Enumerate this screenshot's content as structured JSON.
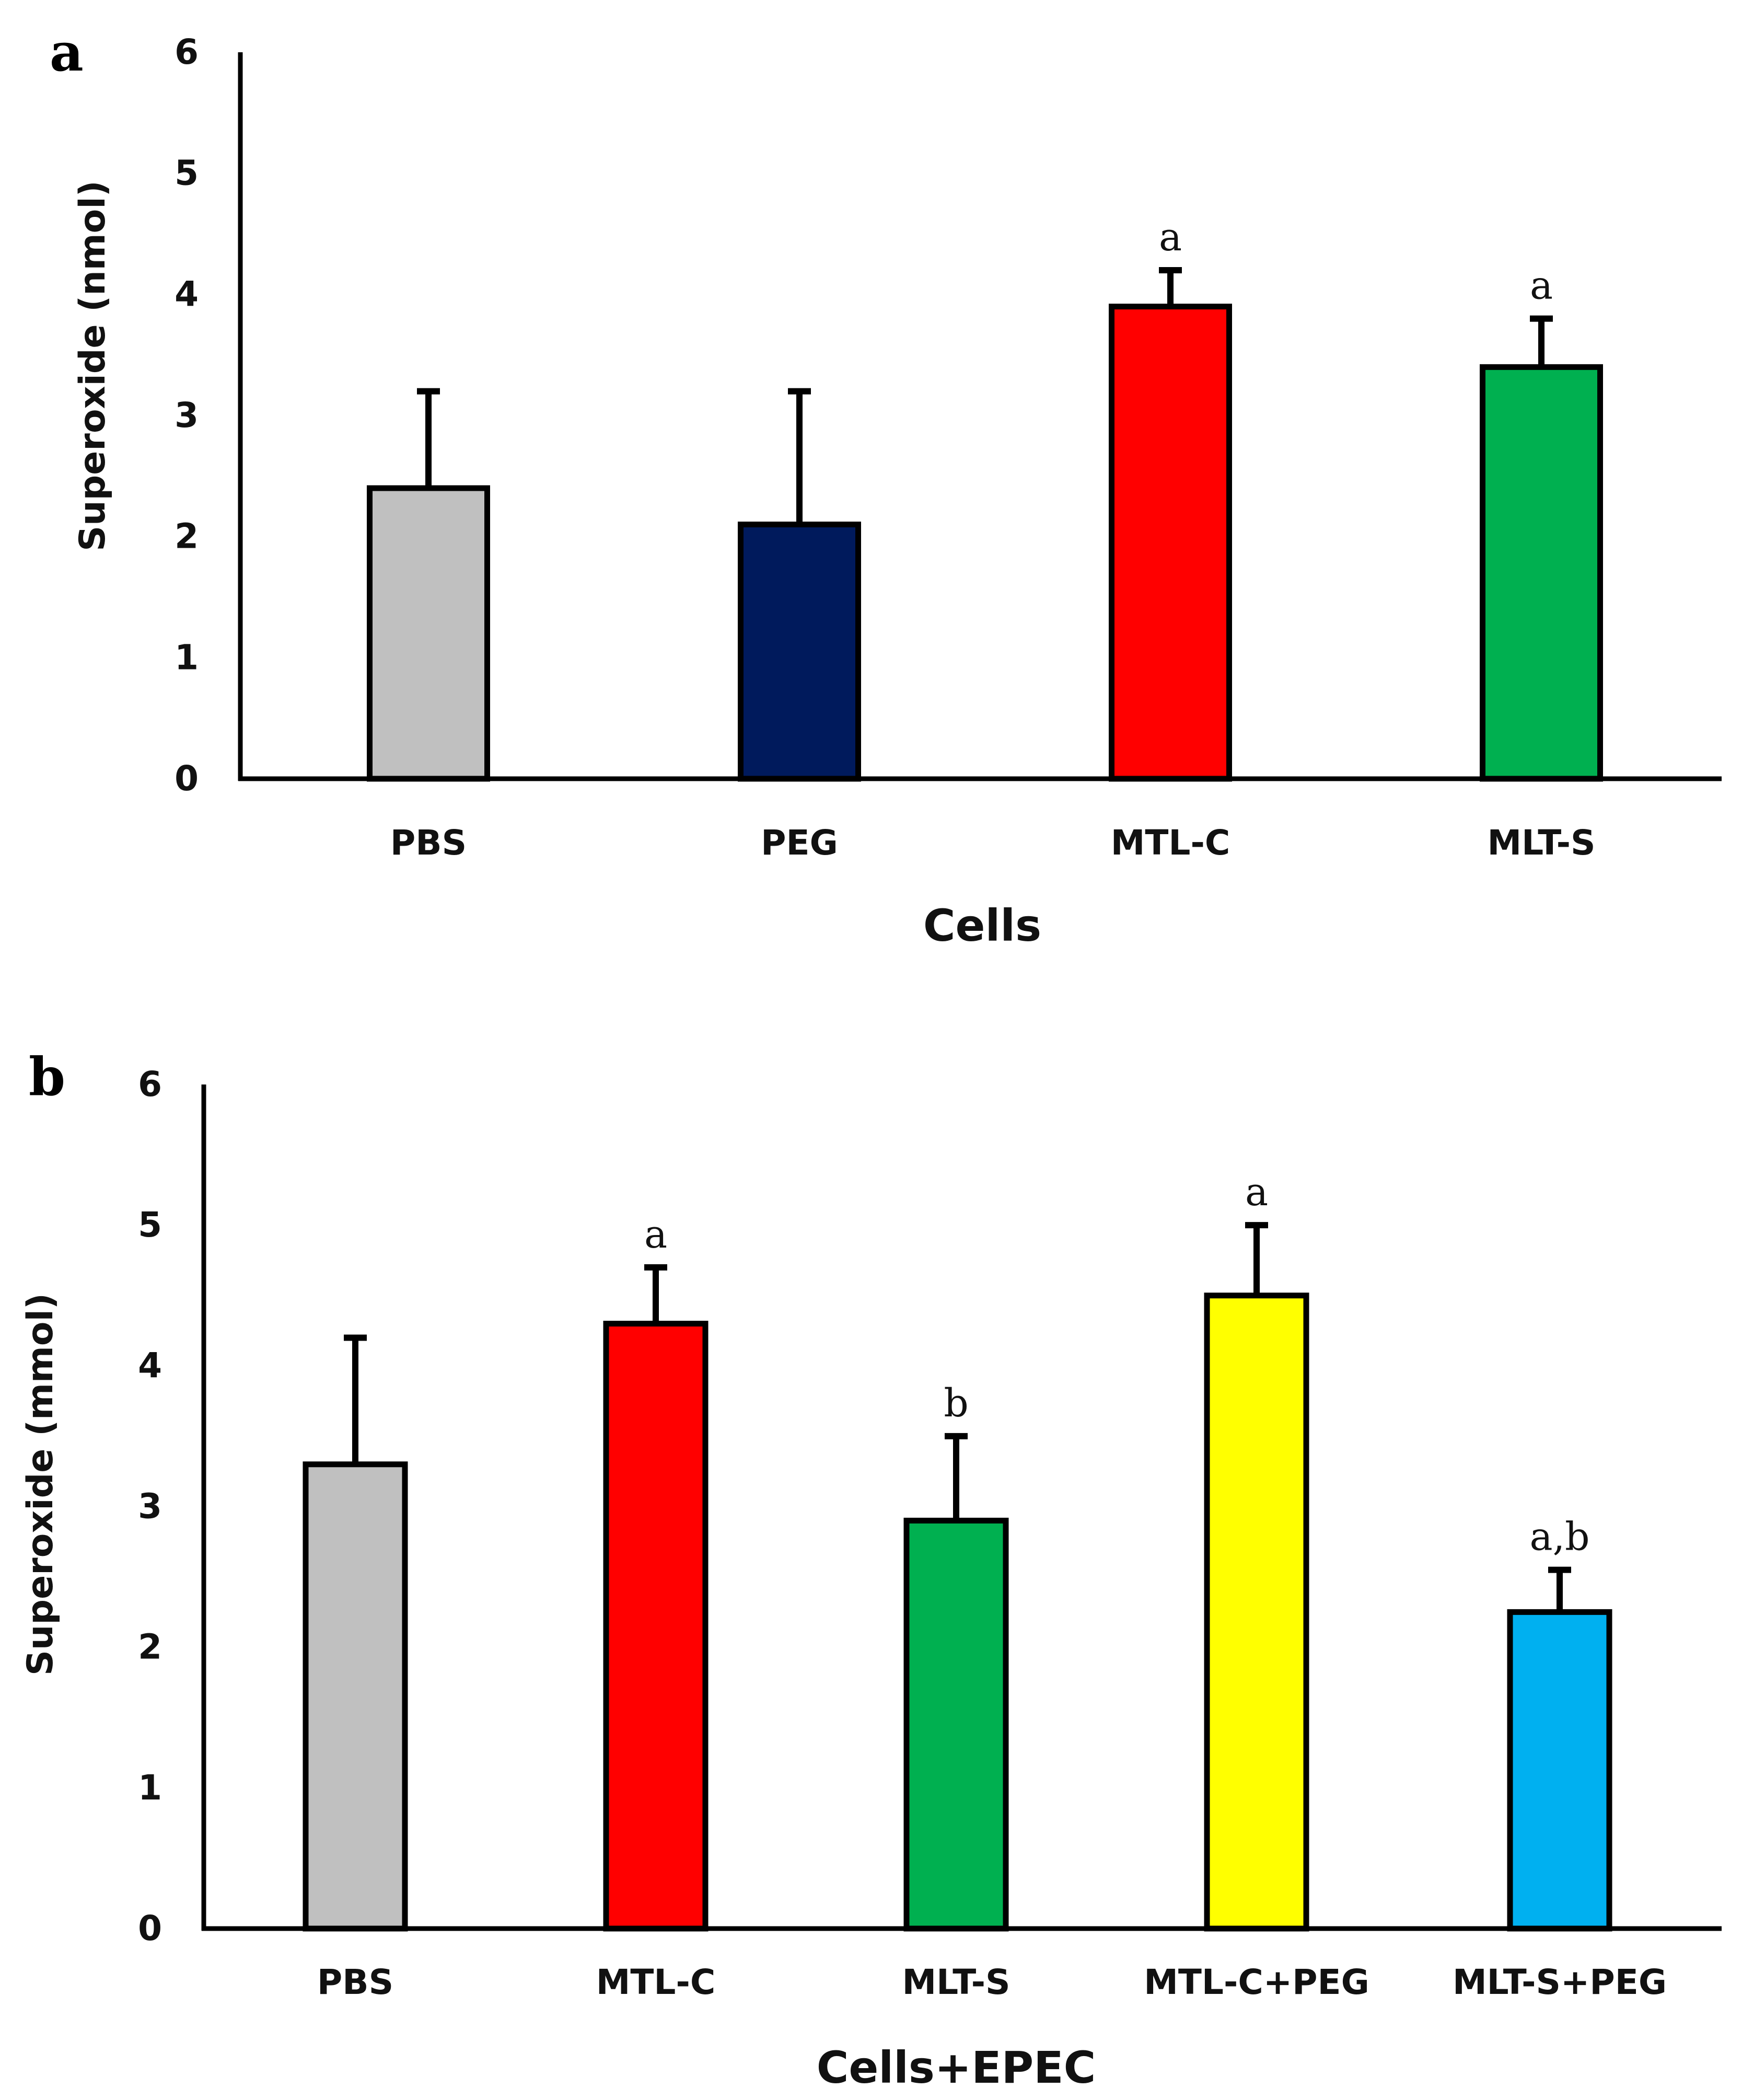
{
  "chart_data": [
    {
      "panel": "a",
      "type": "bar",
      "title": "",
      "xlabel": "Cells",
      "ylabel": "Superoxide (nmol)",
      "ylim": [
        0,
        6
      ],
      "yticks": [
        "0",
        "1",
        "2",
        "3",
        "4",
        "5",
        "6"
      ],
      "grid": false,
      "categories": [
        "PBS",
        "PEG",
        "MTL-C",
        "MLT-S"
      ],
      "values": [
        2.4,
        2.1,
        3.9,
        3.4
      ],
      "errors": [
        0.8,
        1.1,
        0.3,
        0.4
      ],
      "annotations": [
        "",
        "",
        "a",
        "a"
      ],
      "colors": [
        "#c0c0c0",
        "#001a5c",
        "#ff0000",
        "#00b050"
      ]
    },
    {
      "panel": "b",
      "type": "bar",
      "title": "",
      "xlabel": "Cells+EPEC",
      "ylabel": "Superoxide (mmol)",
      "ylim": [
        0,
        6
      ],
      "yticks": [
        "0",
        "1",
        "2",
        "3",
        "4",
        "5",
        "6"
      ],
      "grid": false,
      "categories": [
        "PBS",
        "MTL-C",
        "MLT-S",
        "MTL-C+PEG",
        "MLT-S+PEG"
      ],
      "values": [
        3.3,
        4.3,
        2.9,
        4.5,
        2.25
      ],
      "errors": [
        0.9,
        0.4,
        0.6,
        0.5,
        0.3
      ],
      "annotations": [
        "",
        "a",
        "b",
        "a",
        "a,b"
      ],
      "colors": [
        "#c0c0c0",
        "#ff0000",
        "#00b050",
        "#ffff00",
        "#00b0f0"
      ]
    }
  ]
}
